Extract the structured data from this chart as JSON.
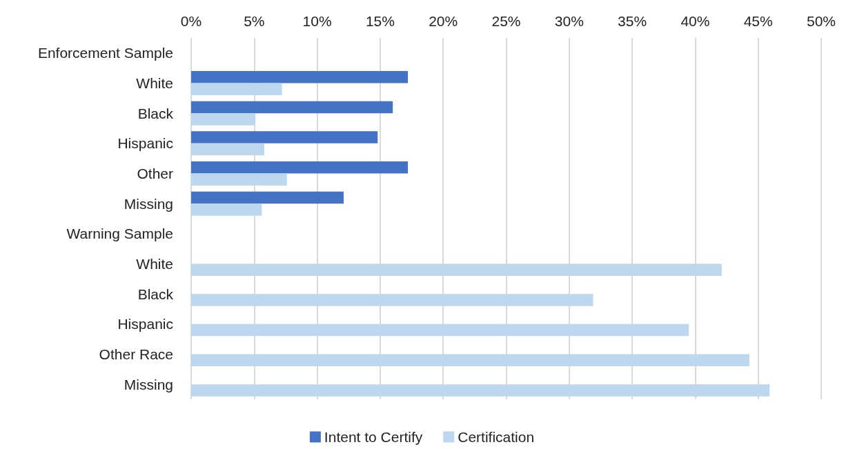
{
  "chart_data": {
    "type": "bar",
    "orientation": "horizontal",
    "categories": [
      "Enforcement Sample",
      "White",
      "Black",
      "Hispanic",
      "Other",
      "Missing",
      "Warning Sample",
      "White",
      "Black",
      "Hispanic",
      "Other Race",
      "Missing"
    ],
    "series": [
      {
        "name": "Intent to Certify",
        "color": "#4472c4",
        "values": [
          null,
          17.2,
          16.0,
          14.8,
          17.2,
          12.1,
          null,
          null,
          null,
          null,
          null,
          null
        ]
      },
      {
        "name": "Certification",
        "color": "#bdd7ee",
        "values": [
          null,
          7.2,
          5.1,
          5.8,
          7.6,
          5.6,
          null,
          42.1,
          31.9,
          39.5,
          44.3,
          45.9
        ]
      }
    ],
    "xlim": [
      0,
      50
    ],
    "xticks": [
      {
        "value": 0,
        "label": "0%"
      },
      {
        "value": 5,
        "label": "5%"
      },
      {
        "value": 10,
        "label": "10%"
      },
      {
        "value": 15,
        "label": "15%"
      },
      {
        "value": 20,
        "label": "20%"
      },
      {
        "value": 25,
        "label": "25%"
      },
      {
        "value": 30,
        "label": "30%"
      },
      {
        "value": 35,
        "label": "35%"
      },
      {
        "value": 40,
        "label": "40%"
      },
      {
        "value": 45,
        "label": "45%"
      },
      {
        "value": 50,
        "label": "50%"
      }
    ],
    "grid": "x",
    "legend": "bottom"
  }
}
